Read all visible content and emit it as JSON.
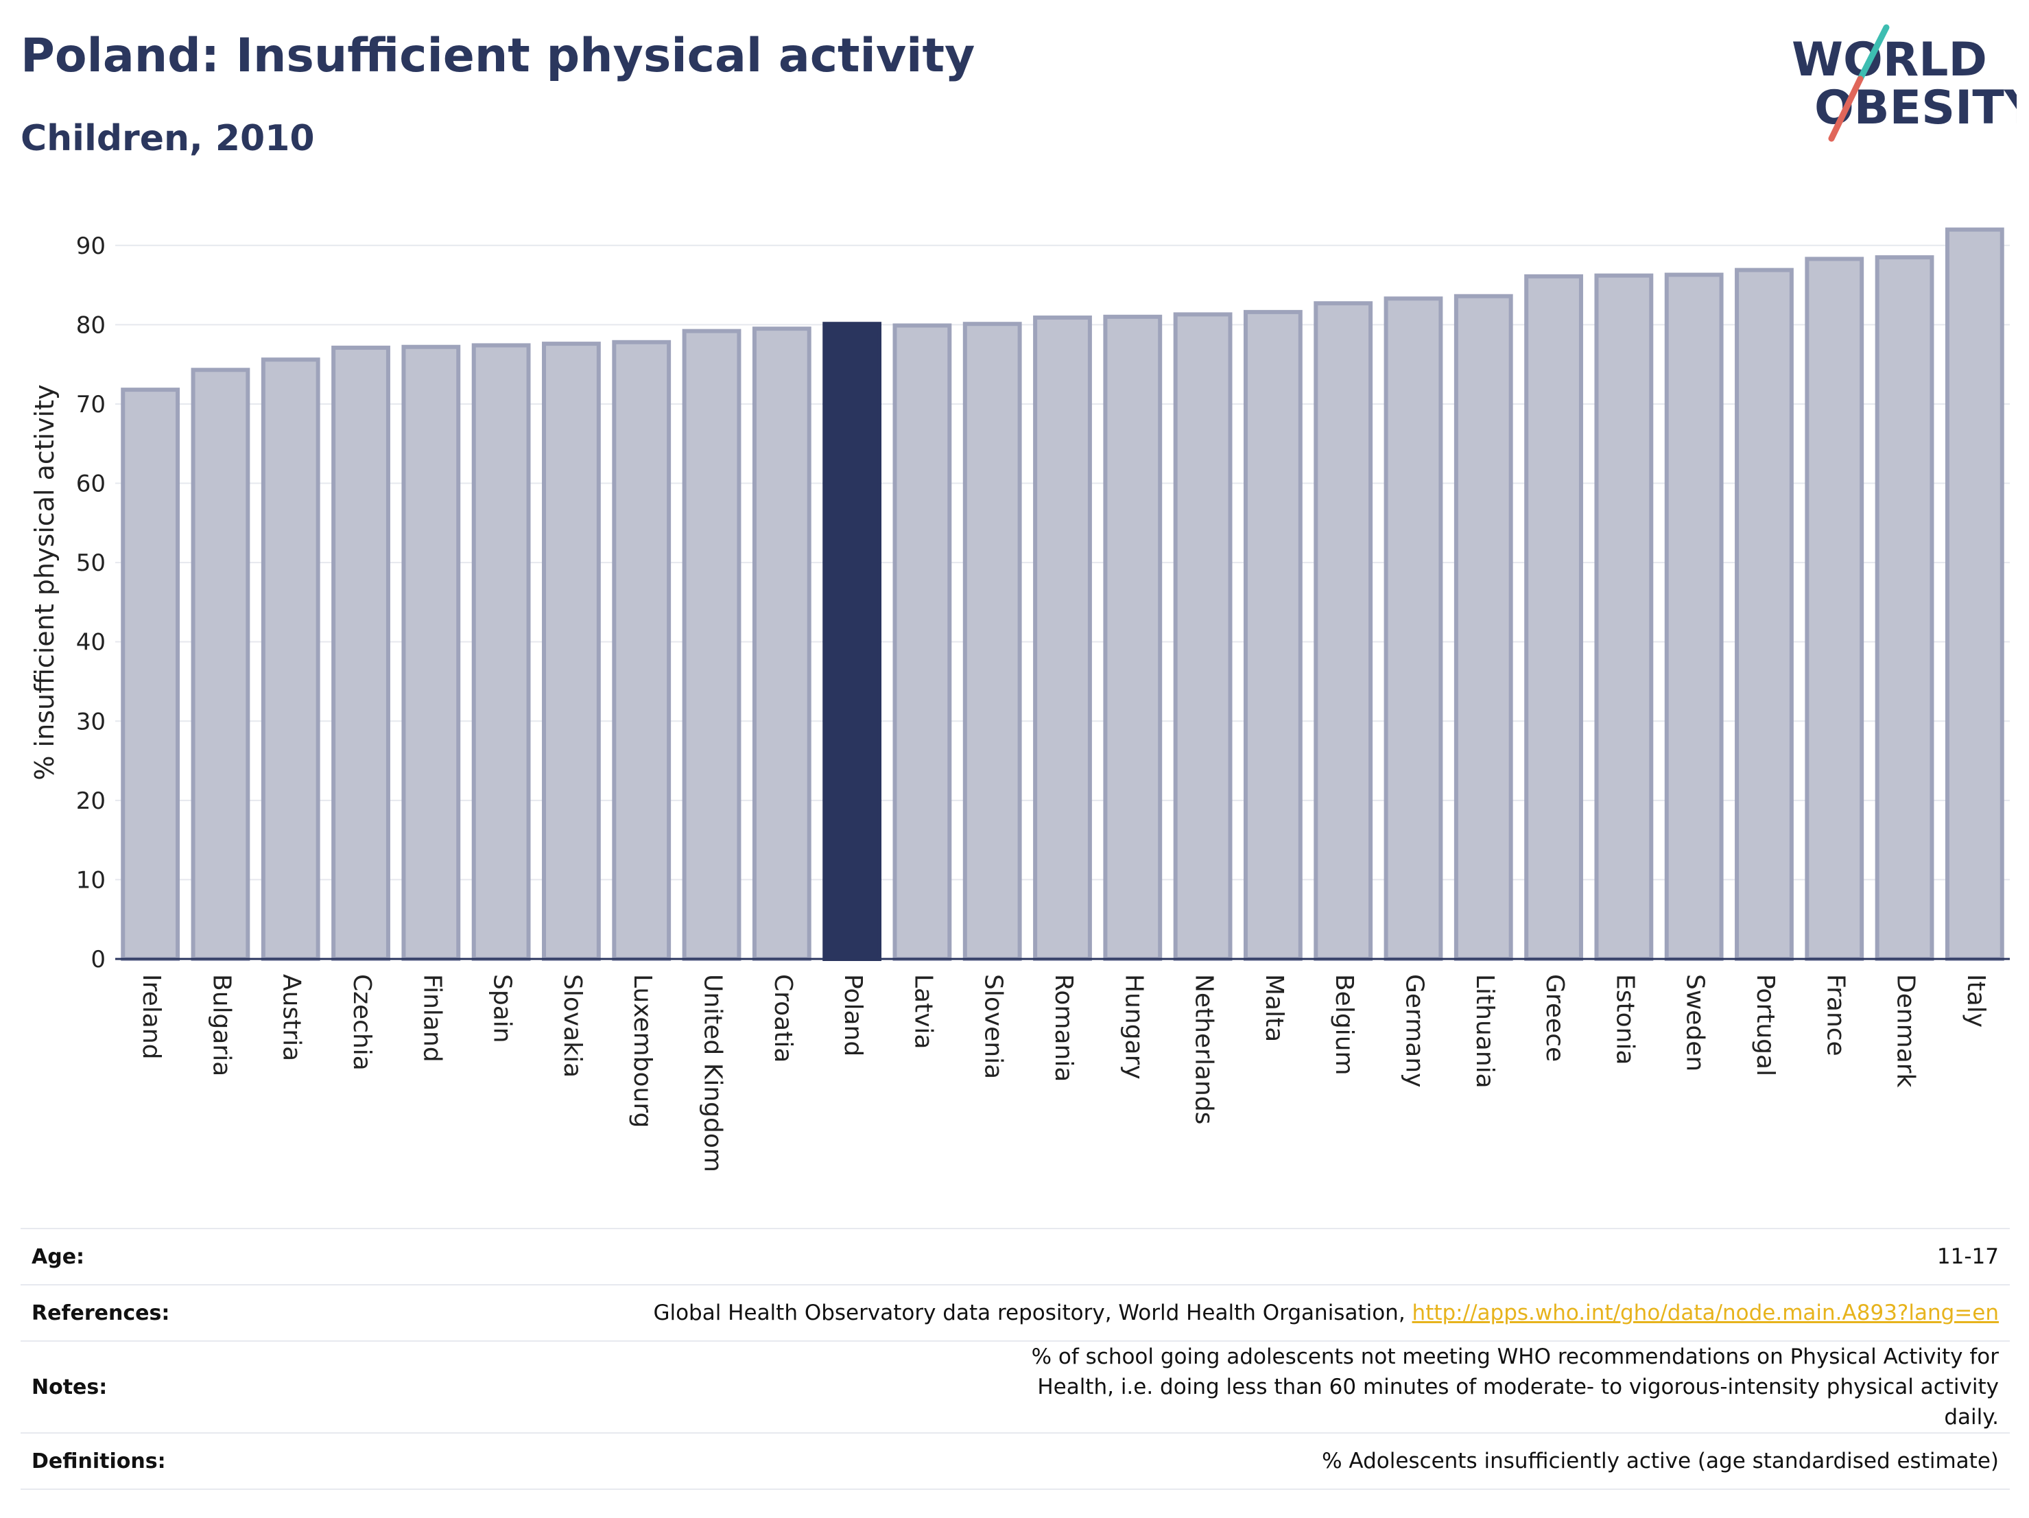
{
  "header": {
    "title": "Poland: Insufficient physical activity",
    "subtitle": "Children, 2010"
  },
  "logo": {
    "line1": "WORLD",
    "line2": "OBESITY",
    "colors": {
      "text": "#2b375e",
      "accent_teal": "#3dbdb1",
      "accent_red": "#e0665a"
    }
  },
  "colors": {
    "bar_default_fill": "#bfc2d0",
    "bar_default_stroke": "#9ea3bb",
    "bar_highlight": "#2a355e",
    "grid": "#e6e8ee",
    "axis": "#2a355e"
  },
  "chart_data": {
    "type": "bar",
    "title": "Poland: Insufficient physical activity",
    "subtitle": "Children, 2010",
    "xlabel": "",
    "ylabel": "% insufficient physical activity",
    "ylim": [
      0,
      95
    ],
    "yticks": [
      0,
      10,
      20,
      30,
      40,
      50,
      60,
      70,
      80,
      90
    ],
    "grid": true,
    "highlight": "Poland",
    "categories": [
      "Ireland",
      "Bulgaria",
      "Austria",
      "Czechia",
      "Finland",
      "Spain",
      "Slovakia",
      "Luxembourg",
      "United Kingdom",
      "Croatia",
      "Poland",
      "Latvia",
      "Slovenia",
      "Romania",
      "Hungary",
      "Netherlands",
      "Malta",
      "Belgium",
      "Germany",
      "Lithuania",
      "Greece",
      "Estonia",
      "Sweden",
      "Portugal",
      "France",
      "Denmark",
      "Italy"
    ],
    "values": [
      71.8,
      74.3,
      75.6,
      77.1,
      77.2,
      77.4,
      77.6,
      77.8,
      79.2,
      79.5,
      80.1,
      79.9,
      80.1,
      80.9,
      81.0,
      81.3,
      81.6,
      82.7,
      83.3,
      83.6,
      86.1,
      86.2,
      86.3,
      86.9,
      88.3,
      88.5,
      92.0
    ]
  },
  "info": [
    {
      "key": "Age:",
      "value": "11-17"
    },
    {
      "key": "References:",
      "value": "Global Health Observatory data repository, World Health Organisation, ",
      "link": "http://apps.who.int/gho/data/node.main.A893?lang=en"
    },
    {
      "key": "Notes:",
      "value": "% of school going adolescents not meeting WHO recommendations on Physical Activity for Health, i.e. doing less than 60 minutes of moderate- to vigorous-intensity physical activity daily."
    },
    {
      "key": "Definitions:",
      "value": "% Adolescents insufficiently active (age standardised estimate)"
    }
  ]
}
